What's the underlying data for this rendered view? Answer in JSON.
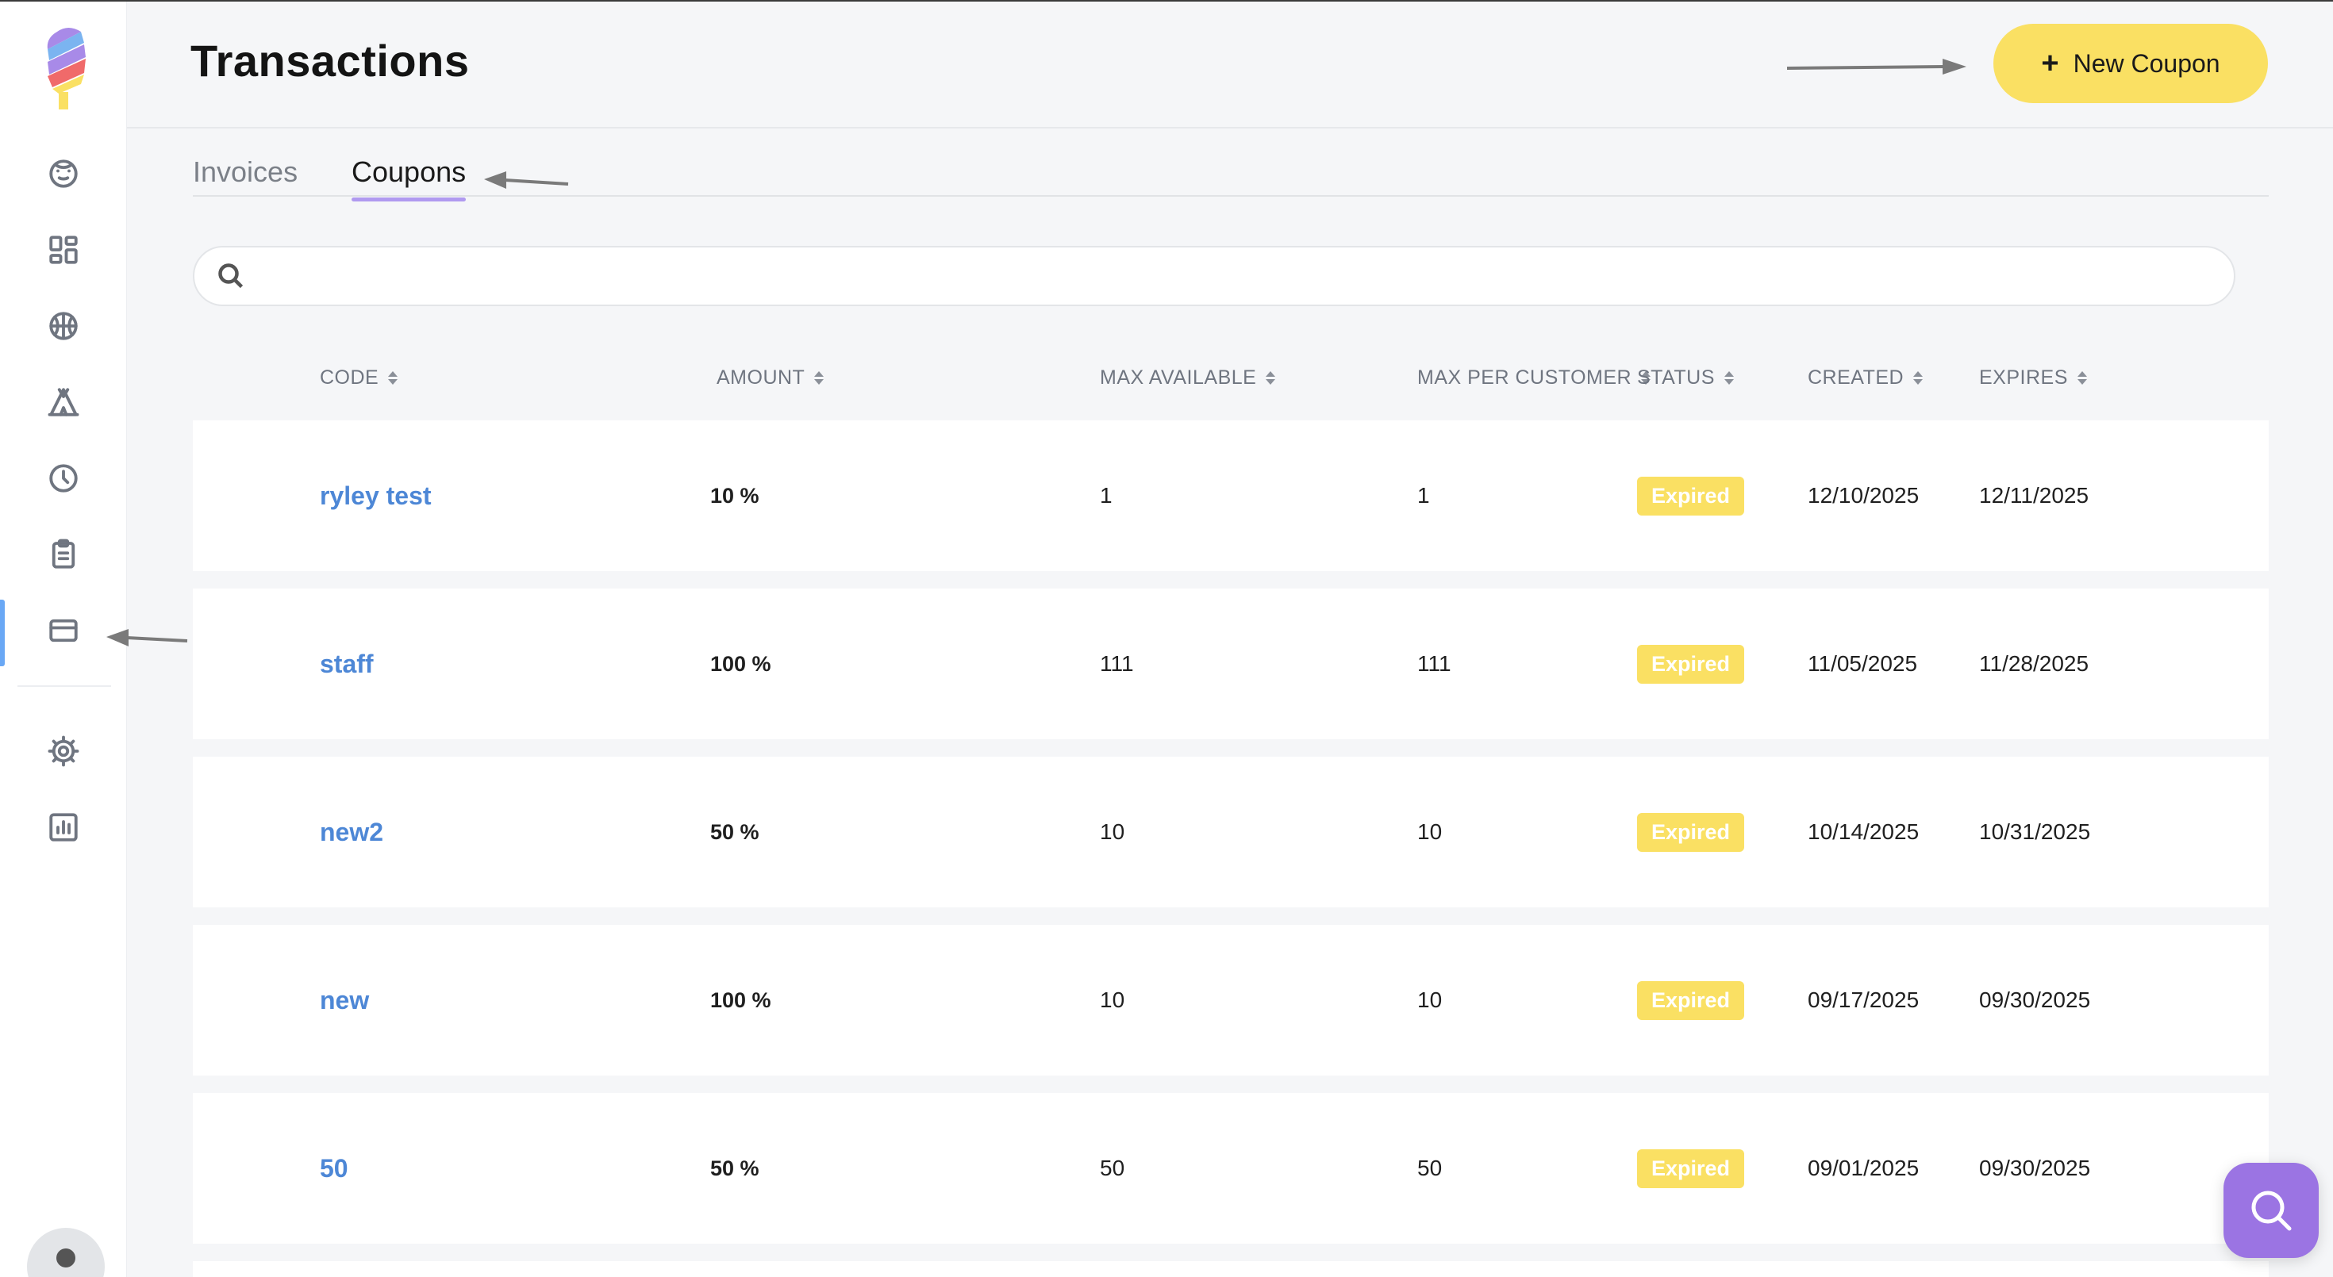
{
  "app": {
    "title": "Transactions",
    "new_button_label": "New Coupon",
    "new_button_icon": "plus-icon"
  },
  "sidebar": {
    "items": [
      {
        "name": "face-icon",
        "active": false
      },
      {
        "name": "dashboard-icon",
        "active": false
      },
      {
        "name": "basketball-icon",
        "active": false
      },
      {
        "name": "tent-icon",
        "active": false
      },
      {
        "name": "clock-icon",
        "active": false
      },
      {
        "name": "clipboard-icon",
        "active": false
      },
      {
        "name": "credit-card-icon",
        "active": true
      },
      {
        "name": "gear-icon",
        "active": false
      },
      {
        "name": "bar-chart-icon",
        "active": false
      }
    ]
  },
  "tabs": [
    {
      "label": "Invoices",
      "active": false
    },
    {
      "label": "Coupons",
      "active": true
    }
  ],
  "search": {
    "placeholder": "",
    "value": ""
  },
  "table": {
    "headers": {
      "code": "CODE",
      "amount": "AMOUNT",
      "max_available": "MAX AVAILABLE",
      "max_per_customer": "MAX PER CUSTOMER",
      "status": "STATUS",
      "created": "CREATED",
      "expires": "EXPIRES"
    },
    "rows": [
      {
        "code": "ryley test",
        "amount": "10 %",
        "max_available": "1",
        "max_per_customer": "1",
        "status": "Expired",
        "created": "12/10/2025",
        "expires": "12/11/2025"
      },
      {
        "code": "staff",
        "amount": "100 %",
        "max_available": "111",
        "max_per_customer": "111",
        "status": "Expired",
        "created": "11/05/2025",
        "expires": "11/28/2025"
      },
      {
        "code": "new2",
        "amount": "50 %",
        "max_available": "10",
        "max_per_customer": "10",
        "status": "Expired",
        "created": "10/14/2025",
        "expires": "10/31/2025"
      },
      {
        "code": "new",
        "amount": "100 %",
        "max_available": "10",
        "max_per_customer": "10",
        "status": "Expired",
        "created": "09/17/2025",
        "expires": "09/30/2025"
      },
      {
        "code": "50",
        "amount": "50 %",
        "max_available": "50",
        "max_per_customer": "50",
        "status": "Expired",
        "created": "09/01/2025",
        "expires": "09/30/2025"
      }
    ]
  },
  "colors": {
    "accent_yellow": "#fae063",
    "link_blue": "#4d87d6",
    "tab_underline": "#b09af0",
    "chat_purple": "#9b74e3",
    "active_nav": "#6aa8f5"
  },
  "chat_button_icon": "search-icon"
}
